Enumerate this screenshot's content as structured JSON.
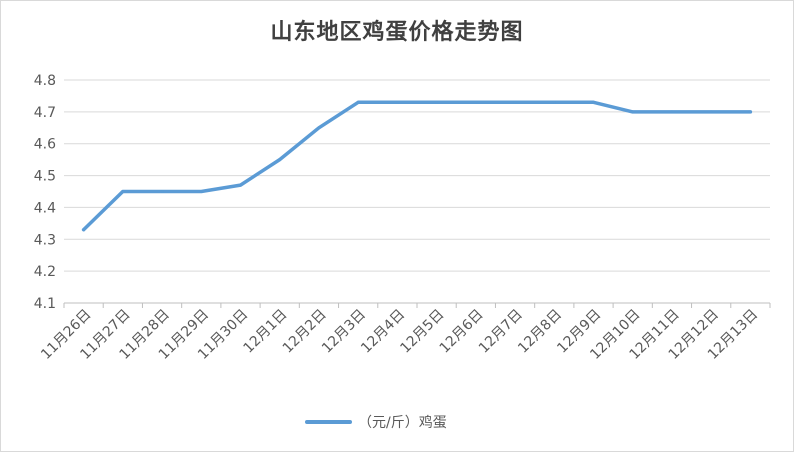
{
  "chart_data": {
    "type": "line",
    "title": "山东地区鸡蛋价格走势图",
    "categories": [
      "11月26日",
      "11月27日",
      "11月28日",
      "11月29日",
      "11月30日",
      "12月1日",
      "12月2日",
      "12月3日",
      "12月4日",
      "12月5日",
      "12月6日",
      "12月7日",
      "12月8日",
      "12月9日",
      "12月10日",
      "12月11日",
      "12月12日",
      "12月13日"
    ],
    "series": [
      {
        "name": "（元/斤）鸡蛋",
        "values": [
          4.33,
          4.45,
          4.45,
          4.45,
          4.47,
          4.55,
          4.65,
          4.73,
          4.73,
          4.73,
          4.73,
          4.73,
          4.73,
          4.73,
          4.7,
          4.7,
          4.7,
          4.7
        ],
        "color": "#5b9bd5"
      }
    ],
    "yticks": [
      "4.1",
      "4.2",
      "4.3",
      "4.4",
      "4.5",
      "4.6",
      "4.7",
      "4.8"
    ],
    "ylim": [
      4.1,
      4.8
    ],
    "grid": true,
    "legend_position": "bottom"
  }
}
